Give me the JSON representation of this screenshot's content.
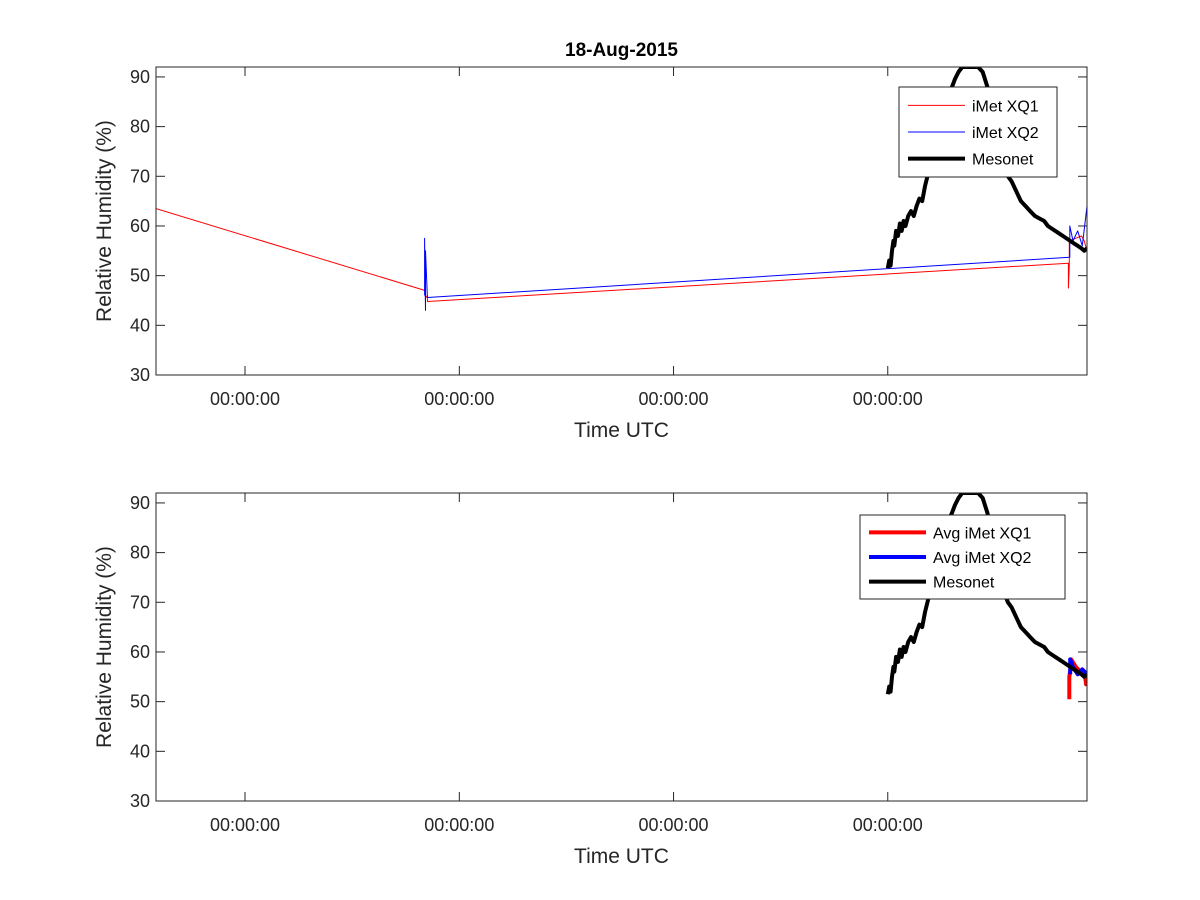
{
  "chart_data": [
    {
      "type": "line",
      "title": "18-Aug-2015",
      "xlabel": "Time UTC",
      "ylabel": "Relative Humidity (%)",
      "ylim": [
        30,
        92
      ],
      "yticks": [
        30,
        40,
        50,
        60,
        70,
        80,
        90
      ],
      "xlim": [
        0,
        1
      ],
      "xticks": [
        0.0956,
        0.3258,
        0.5559,
        0.786
      ],
      "xtick_labels": [
        "00:00:00",
        "00:00:00",
        "00:00:00",
        "00:00:00"
      ],
      "grid": false,
      "legend_position": "top-right",
      "series": [
        {
          "name": "iMet XQ1",
          "color": "#ff0000",
          "width": 1,
          "x": [
            0.0,
            0.289,
            0.289,
            0.2895,
            0.2895,
            0.2915,
            0.2915,
            0.98,
            0.98,
            0.981,
            0.981,
            0.994,
            0.997,
            1.0,
            1.0
          ],
          "y": [
            63.5,
            47.0,
            51.5,
            44.5,
            45.5,
            46.0,
            44.8,
            52.5,
            47.5,
            52.0,
            57.0,
            58.0,
            57.0,
            55.0,
            30.0
          ]
        },
        {
          "name": "iMet XQ2",
          "color": "#0000ff",
          "width": 1,
          "x": [
            0.2885,
            0.2885,
            0.2895,
            0.2895,
            0.2915,
            0.9815,
            0.9815,
            0.985,
            0.99,
            0.995,
            1.0,
            1.0,
            1.0
          ],
          "y": [
            46.0,
            57.5,
            43.0,
            55.0,
            45.6,
            53.7,
            60.0,
            57.0,
            59.0,
            56.0,
            64.0,
            55.0,
            30.0
          ]
        },
        {
          "name": "Mesonet",
          "color": "#000000",
          "width": 4,
          "x": [
            0.786,
            0.7875,
            0.789,
            0.7905,
            0.792,
            0.793,
            0.795,
            0.797,
            0.799,
            0.801,
            0.803,
            0.805,
            0.808,
            0.811,
            0.814,
            0.817,
            0.82,
            0.823,
            0.826,
            0.83,
            0.835,
            0.84,
            0.845,
            0.85,
            0.855,
            0.858,
            0.862,
            0.866,
            0.87,
            0.874,
            0.878,
            0.883,
            0.888,
            0.893,
            0.898,
            0.903,
            0.907,
            0.911,
            0.915,
            0.919,
            0.924,
            0.929,
            0.934,
            0.939,
            0.944,
            0.949,
            0.954,
            0.958,
            0.962,
            0.966,
            0.97,
            0.974,
            0.978,
            0.982,
            0.986,
            0.99,
            0.994,
            0.997,
            1.0
          ],
          "y": [
            51.5,
            53.0,
            52.0,
            55.0,
            57.0,
            56.0,
            59.0,
            58.0,
            60.5,
            59.0,
            61.0,
            60.0,
            62.0,
            63.0,
            62.0,
            64.0,
            65.5,
            65.0,
            68.0,
            71.0,
            75.0,
            79.0,
            83.0,
            86.0,
            88.0,
            89.5,
            91.0,
            92.0,
            92.0,
            92.0,
            92.0,
            92.0,
            91.0,
            88.0,
            84.0,
            80.0,
            76.0,
            72.0,
            70.0,
            69.0,
            67.0,
            65.0,
            64.0,
            63.0,
            62.0,
            61.5,
            61.0,
            60.0,
            59.5,
            59.0,
            58.5,
            58.0,
            57.5,
            57.0,
            56.5,
            56.0,
            55.5,
            55.0,
            55.5
          ]
        }
      ]
    },
    {
      "type": "line",
      "title": "",
      "xlabel": "Time UTC",
      "ylabel": "Relative Humidity (%)",
      "ylim": [
        30,
        92
      ],
      "yticks": [
        30,
        40,
        50,
        60,
        70,
        80,
        90
      ],
      "xlim": [
        0,
        1
      ],
      "xticks": [
        0.0956,
        0.3258,
        0.5559,
        0.786
      ],
      "xtick_labels": [
        "00:00:00",
        "00:00:00",
        "00:00:00",
        "00:00:00"
      ],
      "grid": false,
      "legend_position": "top-right",
      "series": [
        {
          "name": "Avg iMet XQ1",
          "color": "#ff0000",
          "width": 4,
          "x": [
            0.981,
            0.981,
            0.983,
            0.983,
            0.988,
            0.993,
            0.998,
            0.999,
            1.0
          ],
          "y": [
            50.5,
            55.0,
            57.5,
            58.5,
            57.0,
            56.0,
            55.0,
            53.5,
            53.5
          ]
        },
        {
          "name": "Avg iMet XQ2",
          "color": "#0000ff",
          "width": 4,
          "x": [
            0.982,
            0.982,
            0.985,
            0.99,
            0.995,
            1.0
          ],
          "y": [
            55.5,
            58.5,
            57.0,
            55.5,
            56.5,
            55.5
          ]
        },
        {
          "name": "Mesonet",
          "color": "#000000",
          "width": 4,
          "x": [
            0.786,
            0.7875,
            0.789,
            0.7905,
            0.792,
            0.793,
            0.795,
            0.797,
            0.799,
            0.801,
            0.803,
            0.805,
            0.808,
            0.811,
            0.814,
            0.817,
            0.82,
            0.823,
            0.826,
            0.83,
            0.835,
            0.84,
            0.845,
            0.85,
            0.855,
            0.858,
            0.862,
            0.866,
            0.87,
            0.874,
            0.878,
            0.883,
            0.888,
            0.893,
            0.898,
            0.903,
            0.907,
            0.911,
            0.915,
            0.919,
            0.924,
            0.929,
            0.934,
            0.939,
            0.944,
            0.949,
            0.954,
            0.958,
            0.962,
            0.966,
            0.97,
            0.974,
            0.978,
            0.982,
            0.986,
            0.99,
            0.994,
            0.997,
            1.0
          ],
          "y": [
            51.5,
            53.0,
            52.0,
            55.0,
            57.0,
            56.0,
            59.0,
            58.0,
            60.5,
            59.0,
            61.0,
            60.0,
            62.0,
            63.0,
            62.0,
            64.0,
            65.5,
            65.0,
            68.0,
            71.0,
            75.0,
            79.0,
            83.0,
            86.0,
            88.0,
            89.5,
            91.0,
            92.0,
            92.0,
            92.0,
            92.0,
            92.0,
            91.0,
            88.0,
            84.0,
            80.0,
            76.0,
            72.0,
            70.0,
            69.0,
            67.0,
            65.0,
            64.0,
            63.0,
            62.0,
            61.5,
            61.0,
            60.0,
            59.5,
            59.0,
            58.5,
            58.0,
            57.5,
            57.0,
            56.5,
            56.0,
            55.5,
            55.0,
            55.5
          ]
        }
      ]
    }
  ]
}
